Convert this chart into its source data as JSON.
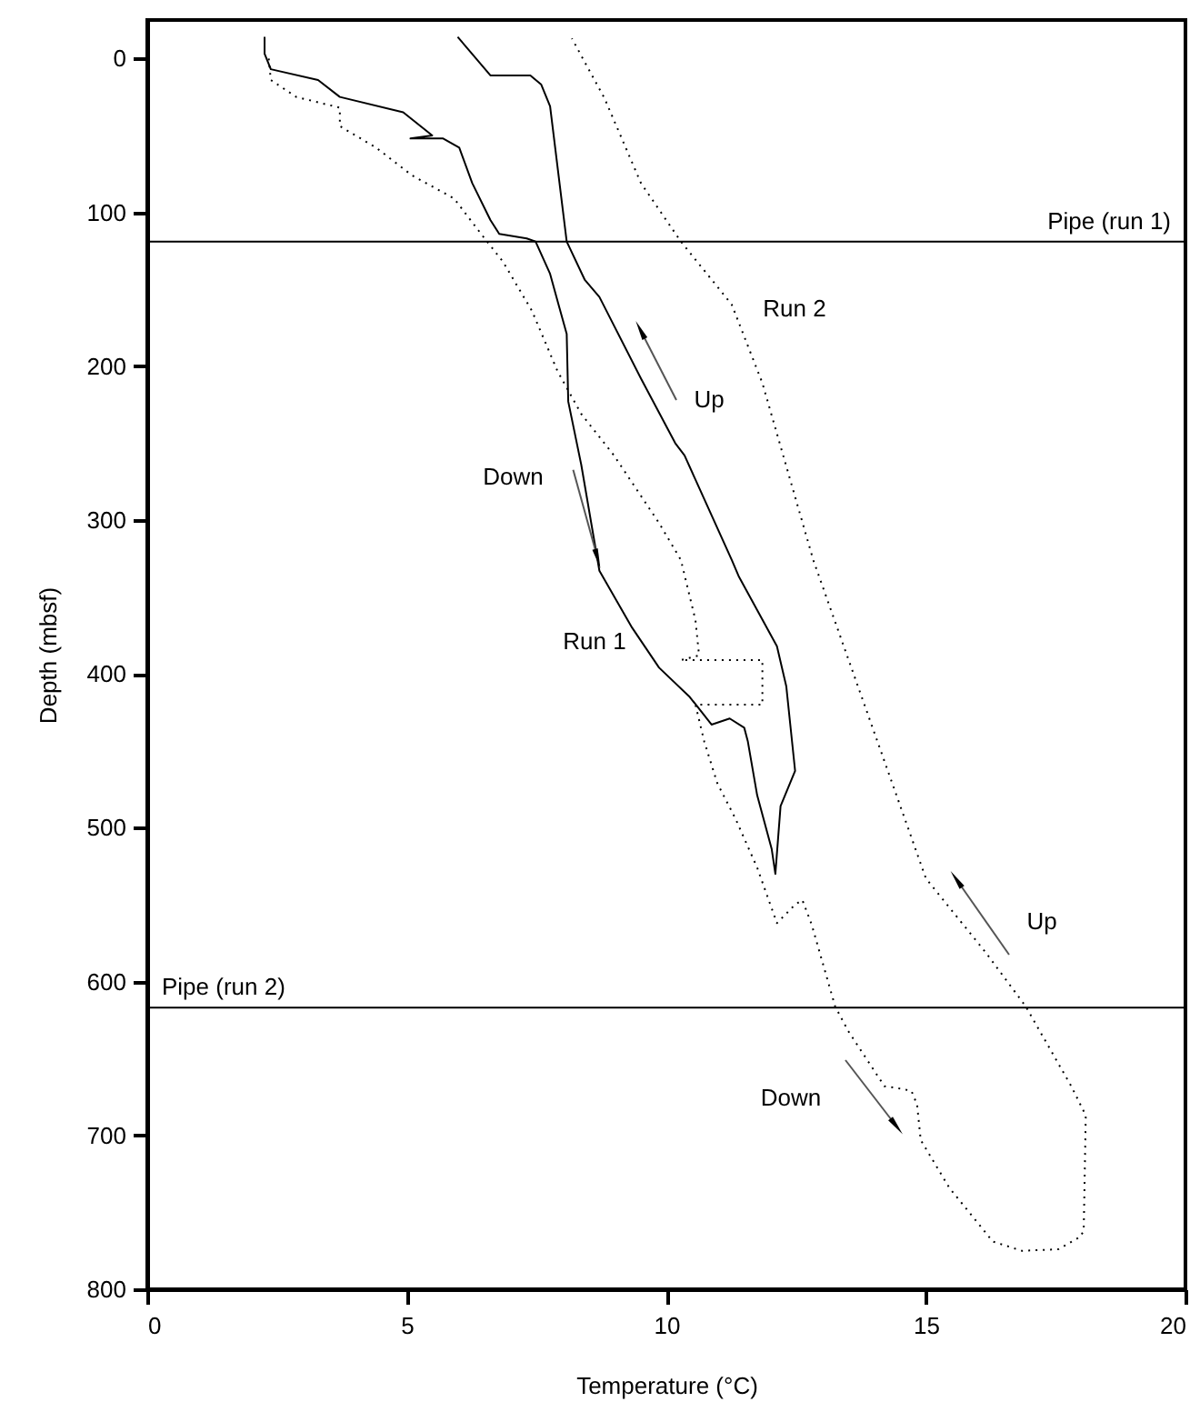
{
  "chart_data": {
    "type": "line",
    "xlabel": "Temperature (°C)",
    "ylabel": "Depth (mbsf)",
    "xlim": [
      0,
      20
    ],
    "xticks": [
      0,
      5,
      10,
      15,
      20
    ],
    "ylim": [
      800,
      -25
    ],
    "yticks": [
      0,
      100,
      200,
      300,
      400,
      500,
      600,
      700,
      800
    ],
    "grid": false,
    "marker": "none",
    "series": [
      {
        "color": "#000000",
        "line_style": "solid",
        "x": [
          2.26,
          2.26,
          2.38,
          3.29,
          3.71,
          4.93,
          5.49,
          5.07,
          5.7,
          6.01,
          6.26,
          6.61,
          6.78,
          7.31,
          7.48,
          7.76,
          7.94,
          8.08,
          8.11,
          8.36,
          8.71,
          9.34,
          9.86,
          10.45,
          10.87,
          11.22,
          11.5,
          11.57,
          11.75,
          12.03,
          12.1,
          12.2,
          12.48,
          12.31,
          12.13,
          11.4,
          11.26,
          10.35,
          10.17,
          9.51,
          8.71,
          8.43,
          8.08,
          7.76,
          7.59,
          7.38,
          6.61,
          5.98
        ],
        "values": [
          -14,
          -3,
          7,
          14,
          25,
          35,
          50,
          52,
          52,
          58,
          81,
          105,
          114,
          117,
          119,
          140,
          162,
          179,
          223,
          264,
          333,
          370,
          396,
          415,
          433,
          429,
          435,
          444,
          479,
          514,
          530,
          486,
          463,
          408,
          382,
          337,
          326,
          258,
          250,
          208,
          155,
          144,
          119,
          31,
          17,
          11,
          11,
          -14
        ]
      },
      {
        "color": "#000000",
        "line_style": "dotted",
        "x": [
          2.34,
          2.38,
          2.87,
          3.71,
          3.71,
          4.41,
          5.1,
          5.91,
          6.43,
          6.85,
          7.41,
          7.9,
          8.36,
          8.99,
          9.86,
          10.28,
          10.56,
          10.63,
          10.28,
          11.85,
          11.85,
          10.56,
          10.73,
          10.98,
          11.33,
          11.75,
          12.13,
          12.48,
          12.62,
          12.8,
          13.25,
          13.5,
          14.2,
          14.41,
          14.72,
          14.83,
          14.9,
          15.45,
          16.29,
          16.85,
          17.55,
          17.97,
          18.04,
          18.08,
          17.8,
          16.92,
          16.15,
          15.0,
          12.83,
          11.85,
          11.26,
          10.28,
          9.51,
          8.81,
          8.18
        ],
        "values": [
          0,
          14,
          25,
          32,
          44,
          58,
          76,
          91,
          114,
          132,
          164,
          203,
          231,
          258,
          302,
          326,
          365,
          388,
          391,
          391,
          420,
          420,
          444,
          471,
          494,
          526,
          562,
          550,
          547,
          563,
          616,
          632,
          668,
          669,
          671,
          680,
          703,
          734,
          769,
          775,
          774,
          766,
          762,
          687,
          668,
          616,
          581,
          533,
          326,
          211,
          160,
          119,
          81,
          26,
          -13
        ]
      }
    ],
    "ref_lines": [
      {
        "axis": "y",
        "value": 119,
        "label": "Pipe (run 1)",
        "color": "#000000"
      },
      {
        "axis": "y",
        "value": 617,
        "label": "Pipe (run 2)",
        "color": "#000000"
      }
    ],
    "annotations": [
      "Run 2",
      "Up",
      {
        "text": "Down",
        "x": 8.66,
        "y": 323
      },
      "Run 1",
      "Up",
      "Down"
    ]
  }
}
